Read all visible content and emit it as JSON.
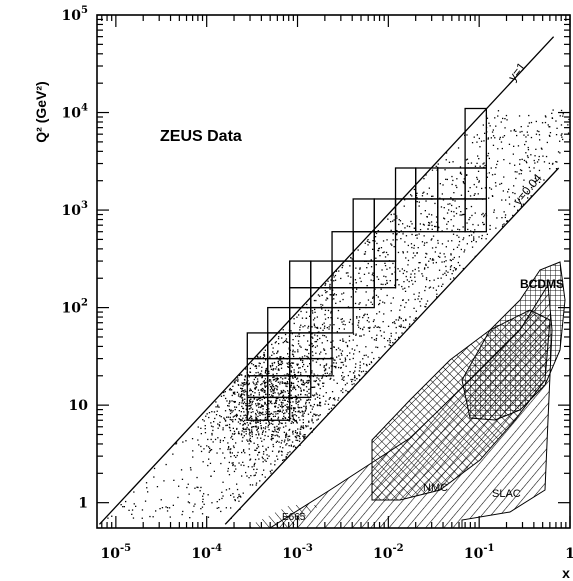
{
  "chart_data": {
    "type": "scatter",
    "title": "",
    "xlabel": "x",
    "ylabel": "Q² (GeV²)",
    "x_scale": "log",
    "y_scale": "log",
    "xlim": [
      6.2e-06,
      1
    ],
    "ylim": [
      0.55,
      100000
    ],
    "x_ticks": [
      {
        "value": 1e-05,
        "base": "10",
        "exp": "-5"
      },
      {
        "value": 0.0001,
        "base": "10",
        "exp": "-4"
      },
      {
        "value": 0.001,
        "base": "10",
        "exp": "-3"
      },
      {
        "value": 0.01,
        "base": "10",
        "exp": "-2"
      },
      {
        "value": 0.1,
        "base": "10",
        "exp": "-1"
      },
      {
        "value": 1,
        "base": "1",
        "exp": ""
      }
    ],
    "y_ticks": [
      {
        "value": 1,
        "base": "1",
        "exp": ""
      },
      {
        "value": 10,
        "base": "10",
        "exp": ""
      },
      {
        "value": 100,
        "base": "10",
        "exp": "2"
      },
      {
        "value": 1000,
        "base": "10",
        "exp": "3"
      },
      {
        "value": 10000,
        "base": "10",
        "exp": "4"
      },
      {
        "value": 100000,
        "base": "10",
        "exp": "5"
      }
    ],
    "grid": false,
    "lines": [
      {
        "label": "y=1",
        "x": [
          6.6e-06,
          0.66
        ],
        "y": [
          0.6,
          60000
        ]
      },
      {
        "label": "y=0.04",
        "x": [
          0.00016,
          0.75
        ],
        "y": [
          0.6,
          2700
        ]
      }
    ],
    "annotations": {
      "dataset": "ZEUS Data",
      "regions": [
        "BCDMS",
        "NMC",
        "SLAC",
        "E665"
      ]
    }
  }
}
